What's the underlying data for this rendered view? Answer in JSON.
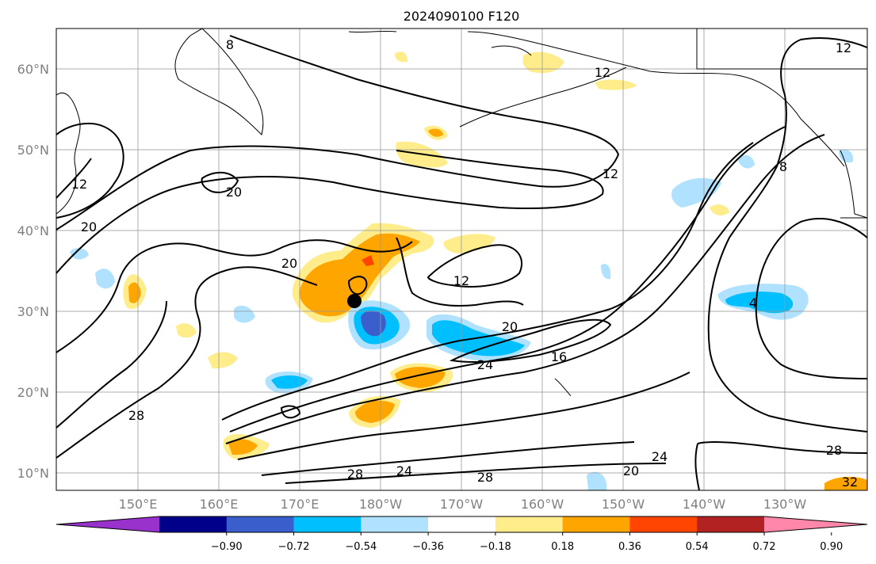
{
  "title": "2024090100 F120",
  "lat_labels": [
    "60°N",
    "50°N",
    "40°N",
    "30°N",
    "20°N",
    "10°N"
  ],
  "lon_labels": [
    "150°E",
    "160°E",
    "170°E",
    "180°W",
    "170°W",
    "160°W",
    "150°W",
    "140°W",
    "130°W"
  ],
  "contour_labels": [
    "8",
    "12",
    "20",
    "20",
    "20",
    "28",
    "12",
    "12",
    "12",
    "20",
    "24",
    "16",
    "24",
    "28",
    "28",
    "24",
    "20",
    "28",
    "8",
    "12",
    "4",
    "32"
  ],
  "colorbar": {
    "colors": [
      "#9932cc",
      "#00008b",
      "#3a5fcd",
      "#00bfff",
      "#b0e2ff",
      "#ffffff",
      "#ffec8b",
      "#ffa500",
      "#ff4500",
      "#b22222",
      "#ff88aa"
    ],
    "ticks": [
      "−0.90",
      "−0.72",
      "−0.54",
      "−0.36",
      "−0.18",
      "0.18",
      "0.36",
      "0.54",
      "0.72",
      "0.90"
    ]
  },
  "storm_marker": {
    "label": "storm-center"
  }
}
